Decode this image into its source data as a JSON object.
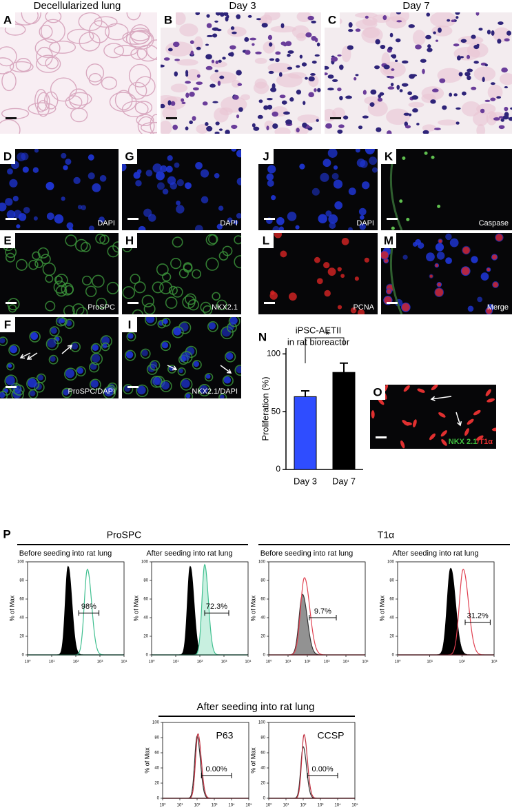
{
  "headers": [
    "Decellularized lung",
    "Day 3",
    "Day 7"
  ],
  "micrographs": [
    {
      "letter": "A"
    },
    {
      "letter": "B"
    },
    {
      "letter": "C"
    },
    {
      "letter": "D",
      "label": "DAPI"
    },
    {
      "letter": "E",
      "label": "ProSPC"
    },
    {
      "letter": "F",
      "label": "ProSPC/DAPI"
    },
    {
      "letter": "G",
      "label": "DAPI"
    },
    {
      "letter": "H",
      "label": "NKX2.1"
    },
    {
      "letter": "I",
      "label": "NKX2.1/DAPI"
    },
    {
      "letter": "J",
      "label": "DAPI"
    },
    {
      "letter": "K",
      "label": "Caspase"
    },
    {
      "letter": "L",
      "label": "PCNA"
    },
    {
      "letter": "M",
      "label": "Merge"
    },
    {
      "letter": "O",
      "label_parts": [
        "NKX 2.1",
        "/T1α"
      ]
    }
  ],
  "chart_data": {
    "type": "bar",
    "panel": "N",
    "title": [
      "iPSC-AETII",
      "in rat bioreactor"
    ],
    "ylabel": "Proliferation (%)",
    "categories": [
      "Day 3",
      "Day 7"
    ],
    "values": [
      63,
      84
    ],
    "errors": [
      5,
      8
    ],
    "colors": [
      "#2f4dff",
      "#000000"
    ],
    "ylim": [
      0,
      105
    ],
    "yticks": [
      0,
      50,
      100
    ],
    "annotation": "*"
  },
  "flow": {
    "panel": "P",
    "ylabel": "% of Max",
    "ylim": [
      0,
      100
    ],
    "yticks": [
      0,
      20,
      40,
      60,
      80,
      100
    ],
    "groups": [
      {
        "title": "ProSPC",
        "plots": [
          {
            "subtitle": "Before seeding into rat lung",
            "gate_label": "98%",
            "xlim": [
              1,
              10000
            ],
            "xticks": [
              {
                "value": 1,
                "label": "10⁰"
              },
              {
                "value": 10,
                "label": "10¹"
              },
              {
                "value": 100,
                "label": "10²"
              },
              {
                "value": 1000,
                "label": "10³"
              },
              {
                "value": 10000,
                "label": "10⁴"
              }
            ]
          },
          {
            "subtitle": "After seeding into rat lung",
            "gate_label": "72.3%",
            "xlim": [
              1,
              10000
            ],
            "xticks": [
              {
                "value": 1,
                "label": "10⁰"
              },
              {
                "value": 10,
                "label": "10¹"
              },
              {
                "value": 100,
                "label": "10²"
              },
              {
                "value": 1000,
                "label": "10³"
              },
              {
                "value": 10000,
                "label": "10⁴"
              }
            ]
          }
        ]
      },
      {
        "title": "T1α",
        "plots": [
          {
            "subtitle": "Before seeding into rat lung",
            "gate_label": "9.7%",
            "xlim": [
              1,
              100000
            ],
            "xticks": [
              {
                "value": 1,
                "label": "10⁰"
              },
              {
                "value": 10,
                "label": "10¹"
              },
              {
                "value": 100,
                "label": "10²"
              },
              {
                "value": 1000,
                "label": "10³"
              },
              {
                "value": 10000,
                "label": "10⁴"
              },
              {
                "value": 100000,
                "label": "10⁵"
              }
            ]
          },
          {
            "subtitle": "After seeding into rat lung",
            "gate_label": "31.2%",
            "xlim": [
              1,
              1000
            ],
            "xticks": [
              {
                "value": 1,
                "label": "10⁰"
              },
              {
                "value": 10,
                "label": "10¹"
              },
              {
                "value": 100,
                "label": "10²"
              },
              {
                "value": 1000,
                "label": "10³"
              }
            ]
          }
        ]
      },
      {
        "title": "After seeding into rat lung",
        "plots": [
          {
            "marker": "P63",
            "gate_label": "0.00%",
            "xlim": [
              1,
              100000
            ],
            "xticks": [
              {
                "value": 1,
                "label": "10⁰"
              },
              {
                "value": 10,
                "label": "10¹"
              },
              {
                "value": 100,
                "label": "10²"
              },
              {
                "value": 1000,
                "label": "10³"
              },
              {
                "value": 10000,
                "label": "10⁴"
              },
              {
                "value": 100000,
                "label": "10⁵"
              }
            ]
          },
          {
            "marker": "CCSP",
            "gate_label": "0.00%",
            "xlim": [
              1,
              100000
            ],
            "xticks": [
              {
                "value": 1,
                "label": "10⁰"
              },
              {
                "value": 10,
                "label": "10¹"
              },
              {
                "value": 100,
                "label": "10²"
              },
              {
                "value": 1000,
                "label": "10³"
              },
              {
                "value": 10000,
                "label": "10⁴"
              },
              {
                "value": 100000,
                "label": "10⁵"
              }
            ]
          }
        ]
      }
    ]
  }
}
